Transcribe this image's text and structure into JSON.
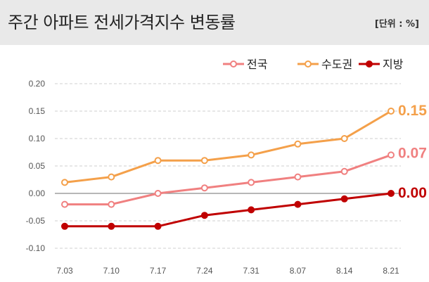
{
  "header": {
    "title": "주간 아파트 전세가격지수 변동률",
    "unit": "[단위 : %]"
  },
  "chart_data": {
    "type": "line",
    "title": "주간 아파트 전세가격지수 변동률",
    "unit": "[단위 : %]",
    "categories": [
      "7.03",
      "7.10",
      "7.17",
      "7.24",
      "7.31",
      "8.07",
      "8.14",
      "8.21"
    ],
    "yticks": [
      "0.20",
      "0.15",
      "0.10",
      "0.05",
      "0.00",
      "-0.05",
      "-0.10"
    ],
    "ylim": [
      -0.1,
      0.2
    ],
    "grid": true,
    "legend_position": "top-right",
    "series": [
      {
        "name": "전국",
        "color": "#f08080",
        "values": [
          -0.02,
          -0.02,
          0.0,
          0.01,
          0.02,
          0.03,
          0.04,
          0.07
        ],
        "end_label": "0.07"
      },
      {
        "name": "수도권",
        "color": "#f4a04a",
        "values": [
          0.02,
          0.03,
          0.06,
          0.06,
          0.07,
          0.09,
          0.1,
          0.15
        ],
        "end_label": "0.15"
      },
      {
        "name": "지방",
        "color": "#c00000",
        "values": [
          -0.06,
          -0.06,
          -0.06,
          -0.04,
          -0.03,
          -0.02,
          -0.01,
          0.0
        ],
        "end_label": "0.00"
      }
    ]
  }
}
